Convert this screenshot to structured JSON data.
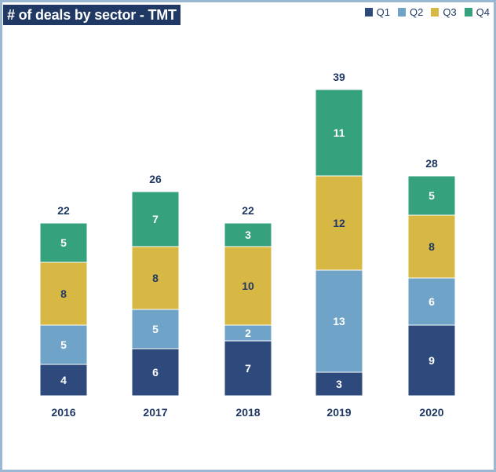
{
  "colors": {
    "Q1": "#2e4a7d",
    "Q2": "#6fa3c8",
    "Q3": "#d8b845",
    "Q4": "#35a17d",
    "title_bg": "#1f3864",
    "text": "#1f3864"
  },
  "chart_data": {
    "type": "bar",
    "stacked": true,
    "title": "# of deals by sector - TMT",
    "xlabel": "",
    "ylabel": "",
    "legend_position": "top-right",
    "grid": false,
    "categories": [
      "2016",
      "2017",
      "2018",
      "2019",
      "2020"
    ],
    "series": [
      {
        "name": "Q1",
        "values": [
          4,
          6,
          7,
          3,
          9
        ]
      },
      {
        "name": "Q2",
        "values": [
          5,
          5,
          2,
          13,
          6
        ]
      },
      {
        "name": "Q3",
        "values": [
          8,
          8,
          10,
          12,
          8
        ]
      },
      {
        "name": "Q4",
        "values": [
          5,
          7,
          3,
          11,
          5
        ]
      }
    ],
    "totals": [
      22,
      26,
      22,
      39,
      28
    ]
  }
}
